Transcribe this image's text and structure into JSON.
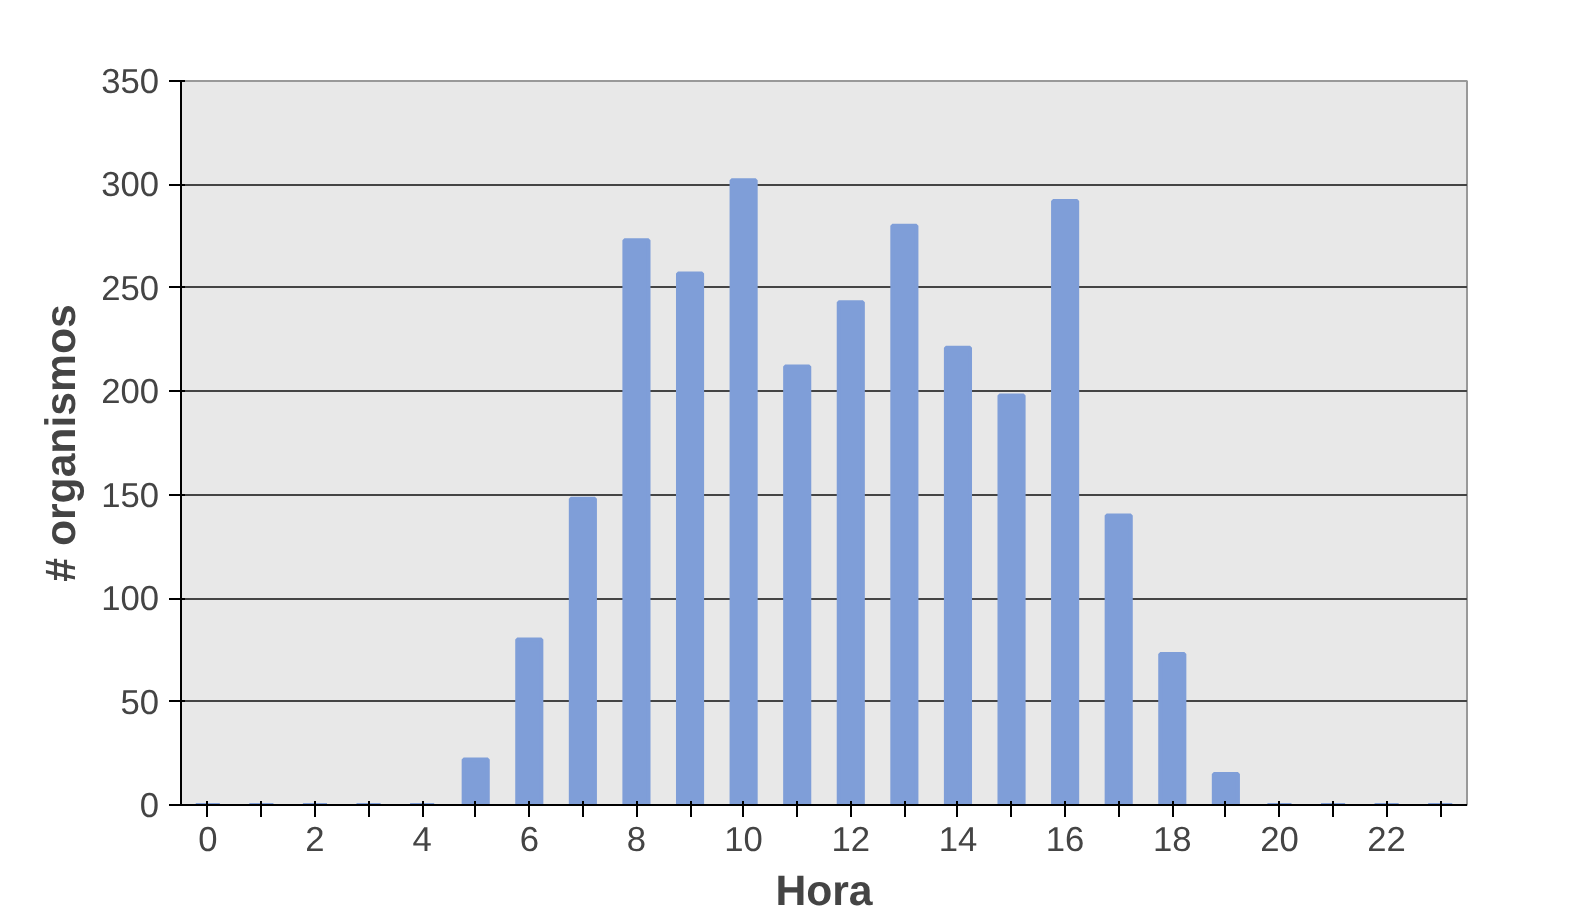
{
  "chart_data": {
    "type": "bar",
    "xlabel": "Hora",
    "ylabel": "# organismos",
    "categories": [
      "0",
      null,
      "2",
      null,
      "4",
      null,
      "6",
      null,
      "8",
      null,
      "10",
      null,
      "12",
      null,
      "14",
      null,
      "16",
      null,
      "18",
      null,
      "20",
      null,
      "22",
      null
    ],
    "values": [
      0,
      0,
      0,
      0,
      0,
      22,
      80,
      148,
      273,
      257,
      302,
      212,
      243,
      280,
      221,
      198,
      292,
      140,
      73,
      15,
      0,
      0,
      0,
      0
    ],
    "color": "#7f9ed8",
    "ylim": [
      0,
      350
    ],
    "yticks": [
      0,
      50,
      100,
      150,
      200,
      250,
      300,
      350
    ],
    "grid": "y"
  }
}
